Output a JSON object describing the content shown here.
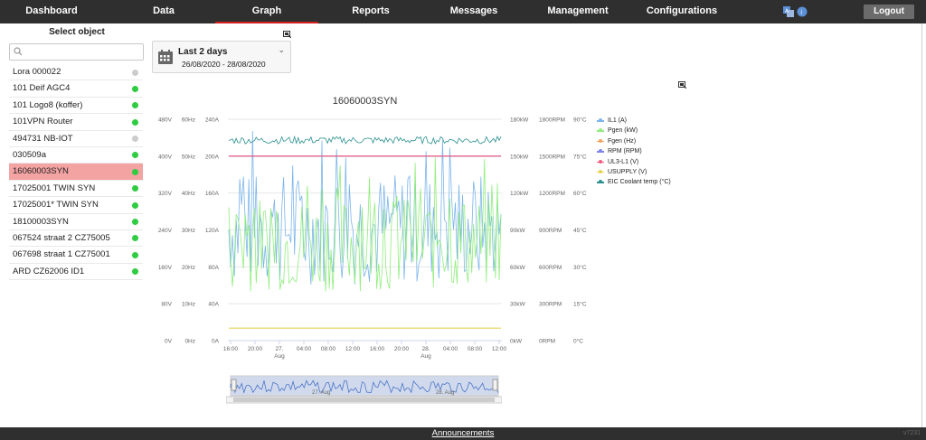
{
  "nav": {
    "items": [
      {
        "label": "Dashboard"
      },
      {
        "label": "Data"
      },
      {
        "label": "Graph"
      },
      {
        "label": "Reports"
      },
      {
        "label": "Messages"
      },
      {
        "label": "Management"
      },
      {
        "label": "Configurations"
      }
    ],
    "active": "Graph",
    "logout_label": "Logout",
    "icons": [
      "translate-icon",
      "info-icon"
    ]
  },
  "sidebar": {
    "title": "Select object",
    "search_placeholder": "",
    "items": [
      {
        "label": "Lora 000022",
        "status": "offline"
      },
      {
        "label": "101 Deif AGC4",
        "status": "online"
      },
      {
        "label": "101 Logo8 (koffer)",
        "status": "online"
      },
      {
        "label": "101VPN Router",
        "status": "online"
      },
      {
        "label": "494731 NB-IOT",
        "status": "offline"
      },
      {
        "label": "030509a",
        "status": "online"
      },
      {
        "label": "16060003SYN",
        "status": "online",
        "selected": true
      },
      {
        "label": "17025001 TWIN SYN",
        "status": "online"
      },
      {
        "label": "17025001* TWIN SYN",
        "status": "online"
      },
      {
        "label": "18100003SYN",
        "status": "online"
      },
      {
        "label": "067524 straat 2 CZ75005",
        "status": "online"
      },
      {
        "label": "067698 straat 1 CZ75001",
        "status": "online"
      },
      {
        "label": "ARD CZ62006 ID1",
        "status": "online"
      }
    ]
  },
  "date_range": {
    "title": "Last 2 days",
    "range": "26/08/2020 - 28/08/2020"
  },
  "colors": {
    "online": "#2ecc40",
    "offline": "#cccccc",
    "selected": "#f4a3a3",
    "topbar": "#2f2f2f",
    "active_underline": "#d42020"
  },
  "chart_data": {
    "type": "line",
    "title": "16060003SYN",
    "x_ticks": [
      "16:00",
      "20:00",
      "27. Aug",
      "04:00",
      "08:00",
      "12:00",
      "16:00",
      "20:00",
      "28. Aug",
      "04:00",
      "08:00",
      "12:00"
    ],
    "axes": [
      {
        "position": "left",
        "ticks": [
          "480V",
          "400V",
          "320V",
          "240V",
          "160V",
          "80V",
          "0V"
        ],
        "range": [
          0,
          480
        ],
        "unit": "V"
      },
      {
        "position": "left",
        "ticks": [
          "60Hz",
          "50Hz",
          "40Hz",
          "30Hz",
          "20Hz",
          "10Hz",
          "0Hz"
        ],
        "range": [
          0,
          60
        ],
        "unit": "Hz"
      },
      {
        "position": "left",
        "ticks": [
          "240A",
          "200A",
          "160A",
          "120A",
          "80A",
          "40A",
          "0A"
        ],
        "range": [
          0,
          240
        ],
        "unit": "A"
      },
      {
        "position": "right",
        "ticks": [
          "180kW",
          "150kW",
          "120kW",
          "90kW",
          "60kW",
          "30kW",
          "0kW"
        ],
        "range": [
          0,
          180
        ],
        "unit": "kW"
      },
      {
        "position": "right",
        "ticks": [
          "1800RPM",
          "1500RPM",
          "1200RPM",
          "900RPM",
          "600RPM",
          "300RPM",
          "0RPM"
        ],
        "range": [
          0,
          1800
        ],
        "unit": "RPM"
      },
      {
        "position": "right",
        "ticks": [
          "90°C",
          "75°C",
          "60°C",
          "45°C",
          "30°C",
          "15°C",
          "0°C"
        ],
        "range": [
          0,
          90
        ],
        "unit": "°C"
      }
    ],
    "series": [
      {
        "name": "IL1 (A)",
        "color": "#7cb5ec",
        "axis": "A",
        "approx_range": [
          60,
          235
        ]
      },
      {
        "name": "Pgen (kW)",
        "color": "#90ed7d",
        "axis": "kW",
        "approx_range": [
          40,
          150
        ]
      },
      {
        "name": "Fgen (Hz)",
        "color": "#f7a35c",
        "axis": "Hz",
        "value": 50
      },
      {
        "name": "RPM (RPM)",
        "color": "#8085e9",
        "axis": "RPM",
        "value": 1500
      },
      {
        "name": "UL3-L1 (V)",
        "color": "#f15c80",
        "axis": "V",
        "value": 400
      },
      {
        "name": "USUPPLY (V)",
        "color": "#e4d354",
        "axis": "V",
        "value": 27
      },
      {
        "name": "EIC Coolant temp (°C)",
        "color": "#2b908f",
        "axis": "°C",
        "approx_range": [
          80,
          83
        ]
      }
    ],
    "grid": true,
    "legend": "right"
  },
  "navigator": {
    "labels": [
      "27. Aug",
      "28. Aug"
    ]
  },
  "footer": {
    "announcements": "Announcements",
    "version": "v7231"
  }
}
